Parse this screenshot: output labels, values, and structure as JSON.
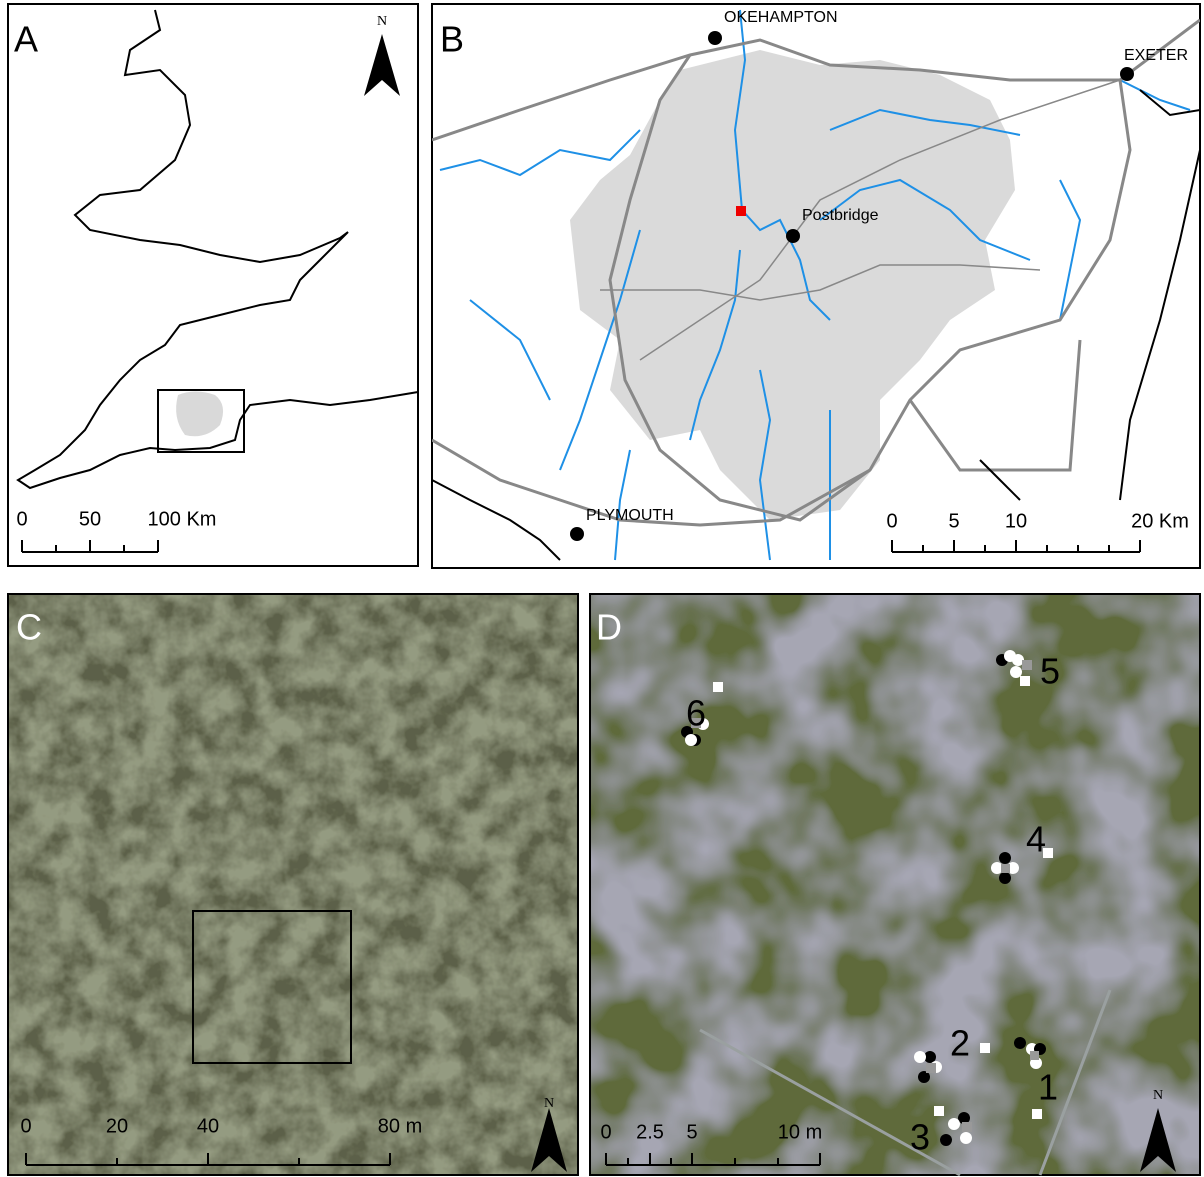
{
  "panels": [
    {
      "label": "A",
      "scale_labels": [
        "0",
        "50",
        "100 Km"
      ],
      "north": "N"
    },
    {
      "label": "B",
      "places": [
        "OKEHAMPTON",
        "EXETER",
        "Postbridge",
        "PLYMOUTH"
      ],
      "scale_labels": [
        "0",
        "5",
        "10",
        "20 Km"
      ]
    },
    {
      "label": "C",
      "scale_labels": [
        "0",
        "20",
        "40",
        "80 m"
      ],
      "north": "N"
    },
    {
      "label": "D",
      "plots": [
        "1",
        "2",
        "3",
        "4",
        "5",
        "6"
      ],
      "scale_labels": [
        "0",
        "2.5",
        "5",
        "10 m"
      ],
      "north": "N"
    }
  ]
}
